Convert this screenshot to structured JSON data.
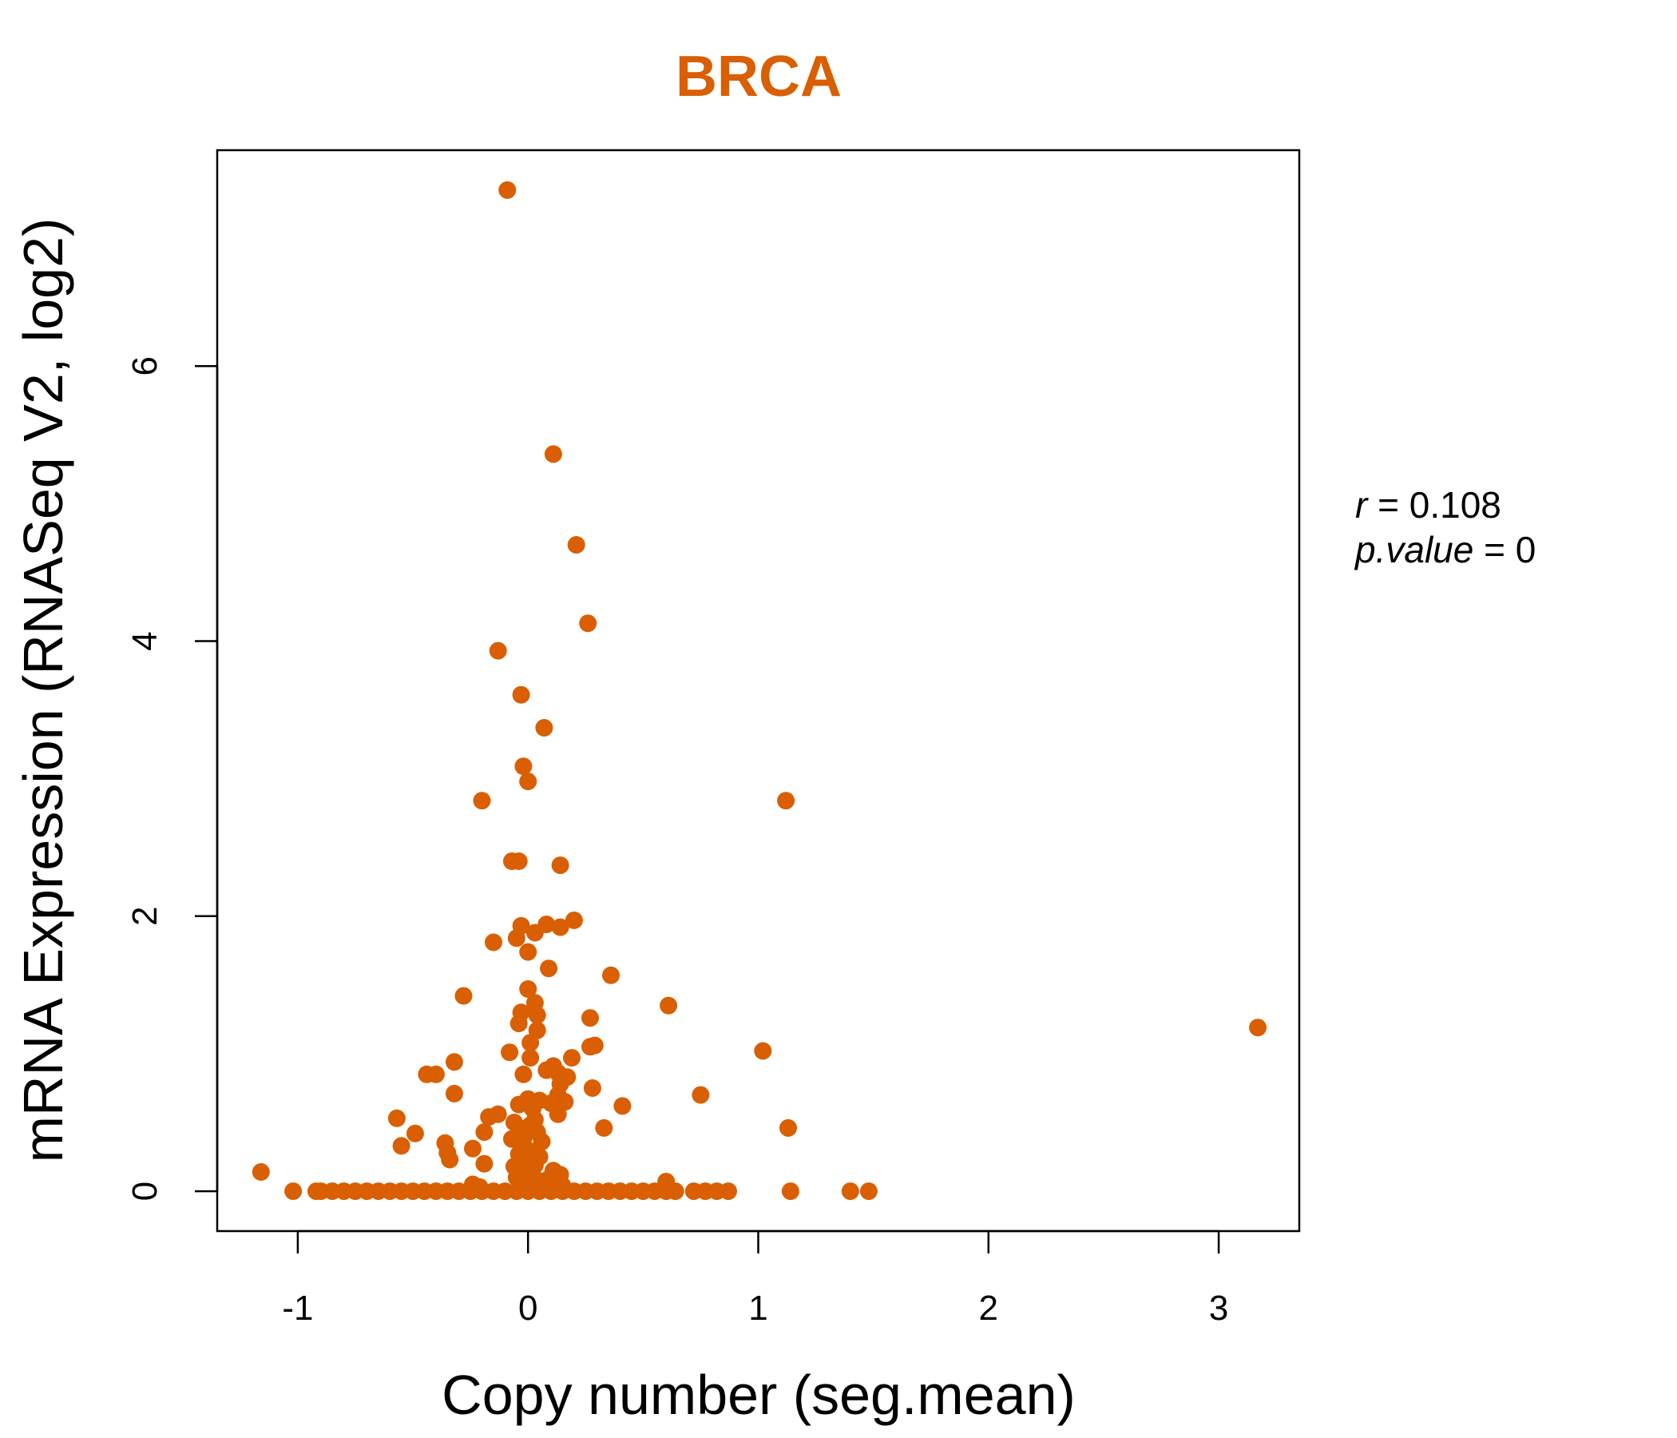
{
  "chart_data": {
    "type": "scatter",
    "title": "BRCA",
    "xlabel": "Copy number (seg.mean)",
    "ylabel": "mRNA Expression (RNASeq V2, log2)",
    "xlim": [
      -1.35,
      3.35
    ],
    "ylim": [
      -0.29,
      7.57
    ],
    "x_ticks": [
      -1,
      0,
      1,
      2,
      3
    ],
    "x_tick_labels": [
      "-1",
      "0",
      "1",
      "2",
      "3"
    ],
    "y_ticks": [
      0,
      2,
      4,
      6
    ],
    "y_tick_labels": [
      "0",
      "2",
      "4",
      "6"
    ],
    "grid": false,
    "legend": "none",
    "point_color": "#D95F02",
    "title_color": "#D95F02",
    "annotation": {
      "r_label": "r",
      "r_value": "0.108",
      "p_label": "p.value",
      "p_value": "0"
    },
    "points": [
      [
        -0.09,
        7.28
      ],
      [
        0.11,
        5.36
      ],
      [
        0.21,
        4.7
      ],
      [
        0.26,
        4.13
      ],
      [
        -0.13,
        3.93
      ],
      [
        -0.03,
        3.61
      ],
      [
        0.07,
        3.37
      ],
      [
        -0.02,
        3.09
      ],
      [
        0.0,
        2.98
      ],
      [
        1.12,
        2.84
      ],
      [
        -0.2,
        2.84
      ],
      [
        -0.07,
        2.4
      ],
      [
        -0.04,
        2.4
      ],
      [
        0.14,
        2.37
      ],
      [
        0.2,
        1.97
      ],
      [
        0.08,
        1.94
      ],
      [
        -0.03,
        1.93
      ],
      [
        0.14,
        1.92
      ],
      [
        0.03,
        1.88
      ],
      [
        -0.05,
        1.84
      ],
      [
        -0.15,
        1.81
      ],
      [
        0.0,
        1.74
      ],
      [
        0.09,
        1.62
      ],
      [
        0.36,
        1.57
      ],
      [
        0.0,
        1.47
      ],
      [
        -0.28,
        1.42
      ],
      [
        0.61,
        1.35
      ],
      [
        0.03,
        1.37
      ],
      [
        -0.03,
        1.3
      ],
      [
        0.04,
        1.28
      ],
      [
        0.27,
        1.26
      ],
      [
        -0.04,
        1.22
      ],
      [
        3.17,
        1.19
      ],
      [
        0.04,
        1.17
      ],
      [
        0.01,
        1.08
      ],
      [
        0.29,
        1.06
      ],
      [
        0.27,
        1.05
      ],
      [
        1.02,
        1.02
      ],
      [
        -0.08,
        1.01
      ],
      [
        0.19,
        0.97
      ],
      [
        0.01,
        0.97
      ],
      [
        -0.32,
        0.94
      ],
      [
        0.11,
        0.91
      ],
      [
        0.08,
        0.88
      ],
      [
        0.13,
        0.86
      ],
      [
        -0.44,
        0.85
      ],
      [
        -0.4,
        0.85
      ],
      [
        -0.02,
        0.85
      ],
      [
        0.17,
        0.83
      ],
      [
        0.14,
        0.78
      ],
      [
        0.28,
        0.75
      ],
      [
        -0.32,
        0.71
      ],
      [
        0.75,
        0.7
      ],
      [
        0.13,
        0.7
      ],
      [
        0.0,
        0.67
      ],
      [
        0.05,
        0.66
      ],
      [
        0.1,
        0.64
      ],
      [
        -0.04,
        0.63
      ],
      [
        0.16,
        0.65
      ],
      [
        0.41,
        0.62
      ],
      [
        0.02,
        0.6
      ],
      [
        0.13,
        0.56
      ],
      [
        -0.13,
        0.56
      ],
      [
        -0.17,
        0.54
      ],
      [
        -0.57,
        0.53
      ],
      [
        0.03,
        0.52
      ],
      [
        -0.06,
        0.5
      ],
      [
        0.01,
        0.48
      ],
      [
        0.33,
        0.46
      ],
      [
        -0.04,
        0.46
      ],
      [
        1.13,
        0.46
      ],
      [
        0.04,
        0.43
      ],
      [
        -0.19,
        0.43
      ],
      [
        -0.03,
        0.42
      ],
      [
        -0.49,
        0.42
      ],
      [
        -0.07,
        0.38
      ],
      [
        0.06,
        0.36
      ],
      [
        -0.02,
        0.38
      ],
      [
        -0.36,
        0.35
      ],
      [
        -0.55,
        0.33
      ],
      [
        -0.24,
        0.31
      ],
      [
        -0.35,
        0.28
      ],
      [
        0.02,
        0.29
      ],
      [
        -0.04,
        0.27
      ],
      [
        0.05,
        0.25
      ],
      [
        -0.34,
        0.23
      ],
      [
        -0.02,
        0.23
      ],
      [
        -0.19,
        0.2
      ],
      [
        0.03,
        0.19
      ],
      [
        -0.06,
        0.18
      ],
      [
        0.11,
        0.15
      ],
      [
        0.01,
        0.14
      ],
      [
        -1.16,
        0.14
      ],
      [
        0.14,
        0.12
      ],
      [
        -0.05,
        0.1
      ],
      [
        0.09,
        0.09
      ],
      [
        0.04,
        0.08
      ],
      [
        0.6,
        0.07
      ],
      [
        -0.24,
        0.05
      ],
      [
        -0.02,
        0.05
      ],
      [
        0.15,
        0.04
      ],
      [
        -0.21,
        0.03
      ],
      [
        -1.02,
        0.0
      ],
      [
        -0.92,
        0.0
      ],
      [
        -0.9,
        0.0
      ],
      [
        -0.85,
        0.0
      ],
      [
        -0.8,
        0.0
      ],
      [
        -0.75,
        0.0
      ],
      [
        -0.7,
        0.0
      ],
      [
        -0.65,
        0.0
      ],
      [
        -0.6,
        0.0
      ],
      [
        -0.55,
        0.0
      ],
      [
        -0.5,
        0.0
      ],
      [
        -0.45,
        0.0
      ],
      [
        -0.4,
        0.0
      ],
      [
        -0.35,
        0.0
      ],
      [
        -0.3,
        0.0
      ],
      [
        -0.25,
        0.0
      ],
      [
        -0.2,
        0.0
      ],
      [
        -0.15,
        0.0
      ],
      [
        -0.1,
        0.0
      ],
      [
        -0.05,
        0.0
      ],
      [
        0.0,
        0.0
      ],
      [
        0.05,
        0.0
      ],
      [
        0.1,
        0.0
      ],
      [
        0.15,
        0.0
      ],
      [
        0.2,
        0.0
      ],
      [
        0.25,
        0.0
      ],
      [
        0.3,
        0.0
      ],
      [
        0.35,
        0.0
      ],
      [
        0.4,
        0.0
      ],
      [
        0.45,
        0.0
      ],
      [
        0.5,
        0.0
      ],
      [
        0.55,
        0.0
      ],
      [
        0.6,
        0.0
      ],
      [
        0.64,
        0.0
      ],
      [
        0.72,
        0.0
      ],
      [
        0.77,
        0.0
      ],
      [
        0.82,
        0.0
      ],
      [
        0.87,
        0.0
      ],
      [
        1.14,
        0.0
      ],
      [
        1.4,
        0.0
      ],
      [
        1.48,
        0.0
      ]
    ]
  }
}
